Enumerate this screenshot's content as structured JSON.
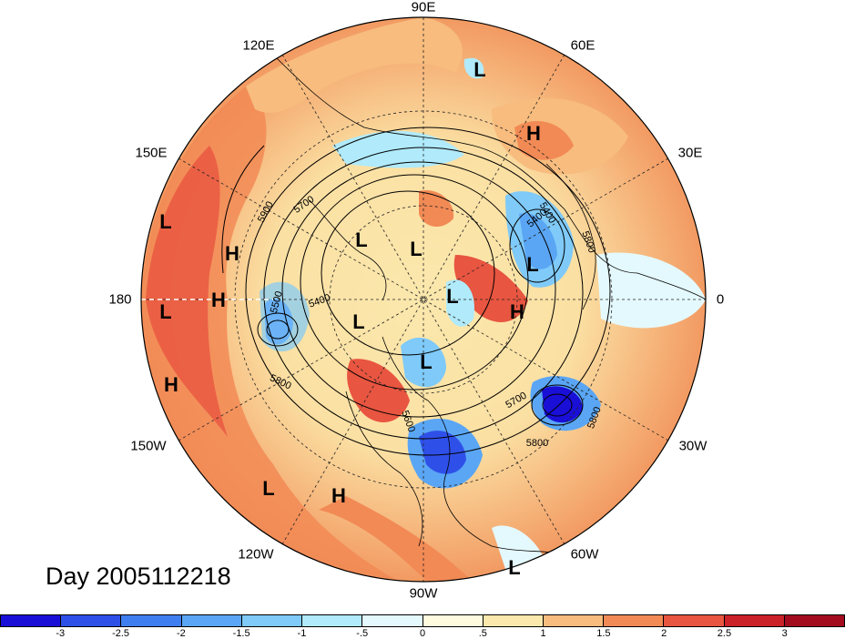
{
  "title": "Day 2005112218",
  "longitude_labels": [
    {
      "text": "90E",
      "lon": 90
    },
    {
      "text": "60E",
      "lon": 60
    },
    {
      "text": "30E",
      "lon": 30
    },
    {
      "text": "0",
      "lon": 0
    },
    {
      "text": "30W",
      "lon": -30
    },
    {
      "text": "60W",
      "lon": -60
    },
    {
      "text": "90W",
      "lon": -90
    },
    {
      "text": "120W",
      "lon": -120
    },
    {
      "text": "150W",
      "lon": -150
    },
    {
      "text": "180",
      "lon": 180
    },
    {
      "text": "150E",
      "lon": 150
    },
    {
      "text": "120E",
      "lon": 120
    }
  ],
  "contour_labels": [
    "5900",
    "5700",
    "5400",
    "5500",
    "5400",
    "5800",
    "5600",
    "5700",
    "5800",
    "5800",
    "5400",
    "5800"
  ],
  "pressure_centers": [
    {
      "type": "L",
      "name": "low-siberia-north"
    },
    {
      "type": "H",
      "name": "high-western-russia"
    },
    {
      "type": "L",
      "name": "low-east-asia-coast"
    },
    {
      "type": "H",
      "name": "high-north-pacific"
    },
    {
      "type": "H",
      "name": "high-dateline"
    },
    {
      "type": "L",
      "name": "low-dateline"
    },
    {
      "type": "L",
      "name": "low-barents"
    },
    {
      "type": "H",
      "name": "high-iceland"
    },
    {
      "type": "L",
      "name": "low-scandinavia"
    },
    {
      "type": "L",
      "name": "low-eastern-siberia"
    },
    {
      "type": "L",
      "name": "low-arctic-ocean"
    },
    {
      "type": "L",
      "name": "low-beaufort"
    },
    {
      "type": "L",
      "name": "low-greenland"
    },
    {
      "type": "L",
      "name": "low-hudson-bay"
    },
    {
      "type": "H",
      "name": "high-central-pacific"
    },
    {
      "type": "L",
      "name": "low-subtropical-pacific"
    },
    {
      "type": "H",
      "name": "high-eastern-pacific"
    },
    {
      "type": "L",
      "name": "low-south-atlantic"
    }
  ],
  "colorbar": {
    "ticks": [
      "-3",
      "-2.5",
      "-2",
      "-1.5",
      "-1",
      "-.5",
      "0",
      ".5",
      "1",
      "1.5",
      "2",
      "2.5",
      "3"
    ],
    "colors": [
      "#1a0fd6",
      "#2f50e8",
      "#3f7ef0",
      "#5aa6f5",
      "#7fcaf8",
      "#b0eafb",
      "#e4f9fd",
      "#fffbdf",
      "#fbe8ad",
      "#f7bc7e",
      "#f28a55",
      "#e85540",
      "#cb2128",
      "#a30c1e"
    ]
  }
}
